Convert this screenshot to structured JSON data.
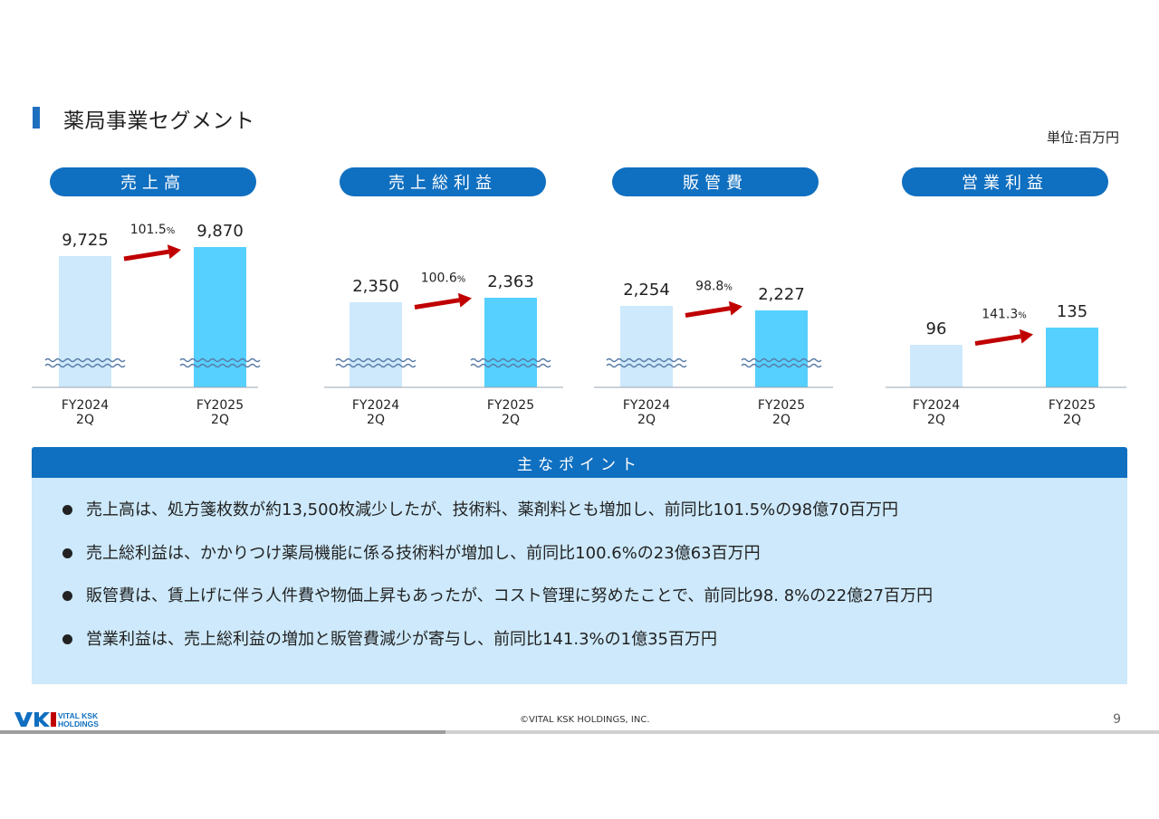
{
  "title": "薬局事業セグメント",
  "unit_label": "単位:百万円",
  "chart_data": [
    {
      "type": "bar",
      "title": "売上高",
      "categories": [
        "FY2024\n2Q",
        "FY2025\n2Q"
      ],
      "values": [
        9725,
        9870
      ],
      "value_labels": [
        "9,725",
        "9,870"
      ],
      "growth_label": "101.5%",
      "broken_axis": true
    },
    {
      "type": "bar",
      "title": "売上総利益",
      "categories": [
        "FY2024\n2Q",
        "FY2025\n2Q"
      ],
      "values": [
        2350,
        2363
      ],
      "value_labels": [
        "2,350",
        "2,363"
      ],
      "growth_label": "100.6%",
      "broken_axis": true
    },
    {
      "type": "bar",
      "title": "販管費",
      "categories": [
        "FY2024\n2Q",
        "FY2025\n2Q"
      ],
      "values": [
        2254,
        2227
      ],
      "value_labels": [
        "2,254",
        "2,227"
      ],
      "growth_label": "98.8%",
      "broken_axis": true
    },
    {
      "type": "bar",
      "title": "営業利益",
      "categories": [
        "FY2024\n2Q",
        "FY2025\n2Q"
      ],
      "values": [
        96,
        135
      ],
      "value_labels": [
        "96",
        "135"
      ],
      "growth_label": "141.3%",
      "broken_axis": false
    }
  ],
  "category_lines": {
    "fy2024": [
      "FY2024",
      "2Q"
    ],
    "fy2025": [
      "FY2025",
      "2Q"
    ]
  },
  "points": {
    "header": "主なポイント",
    "items": [
      "売上高は、処方箋枚数が約13,500枚減少したが、技術料、薬剤料とも増加し、前同比101.5%の98億70百万円",
      "売上総利益は、かかりつけ薬局機能に係る技術料が増加し、前同比100.6%の23億63百万円",
      "販管費は、賃上げに伴う人件費や物価上昇もあったが、コスト管理に努めたことで、前同比98. 8%の22億27百万円",
      "営業利益は、売上総利益の増加と販管費減少が寄与し、前同比141.3%の1億35百万円"
    ]
  },
  "footer": {
    "logo_text_1": "VITAL KSK",
    "logo_text_2": "HOLDINGS",
    "copyright": "©VITAL KSK HOLDINGS, INC.",
    "page_number": "9"
  },
  "colors": {
    "brand_blue": "#0f6fc0",
    "bar_prev": "#cde9fb",
    "bar_curr": "#55d0ff",
    "arrow": "#c00000",
    "points_bg": "#cde9fb"
  }
}
